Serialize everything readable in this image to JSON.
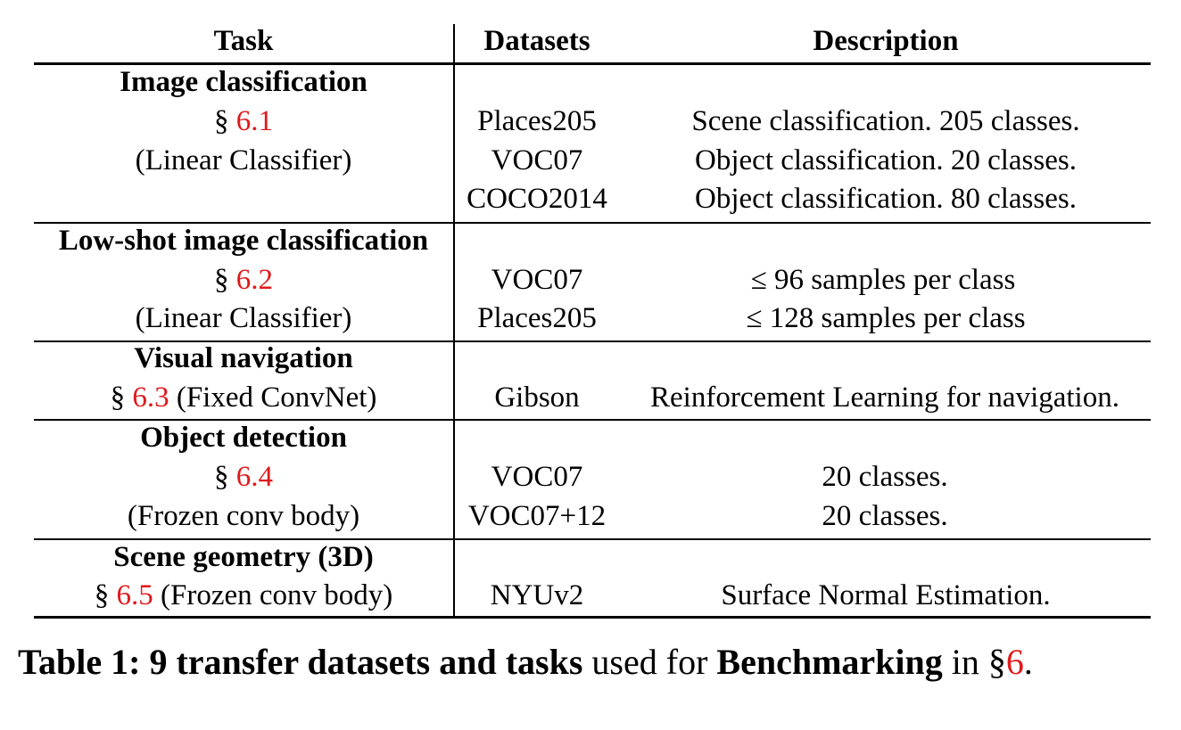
{
  "table": {
    "headers": {
      "task": "Task",
      "datasets": "Datasets",
      "description": "Description"
    },
    "groups": [
      {
        "task_title": "Image classification",
        "section_ref": "6.1",
        "task_note": "(Linear Classifier)",
        "rows": [
          {
            "dataset": "Places205",
            "description": "Scene classification. 205 classes."
          },
          {
            "dataset": "VOC07",
            "description": "Object classification. 20 classes."
          },
          {
            "dataset": "COCO2014",
            "description": "Object classification. 80 classes."
          }
        ]
      },
      {
        "task_title": "Low-shot image classification",
        "section_ref": "6.2",
        "task_note": "(Linear Classifier)",
        "rows": [
          {
            "dataset": "VOC07",
            "description": "≤ 96 samples per class"
          },
          {
            "dataset": "Places205",
            "description": "≤ 128 samples per class"
          }
        ]
      },
      {
        "task_title": "Visual navigation",
        "section_ref": "6.3",
        "task_note": "(Fixed ConvNet)",
        "rows": [
          {
            "dataset": "Gibson",
            "description": "Reinforcement Learning for navigation."
          }
        ]
      },
      {
        "task_title": "Object detection",
        "section_ref": "6.4",
        "task_note": "(Frozen conv body)",
        "rows": [
          {
            "dataset": "VOC07",
            "description": "20 classes."
          },
          {
            "dataset": "VOC07+12",
            "description": "20 classes."
          }
        ]
      },
      {
        "task_title": "Scene geometry (3D)",
        "section_ref": "6.5",
        "task_note": "(Frozen conv body)",
        "rows": [
          {
            "dataset": "NYUv2",
            "description": "Surface Normal Estimation."
          }
        ]
      }
    ],
    "section_symbol": "§"
  },
  "caption": {
    "label": "Table 1:",
    "bold_part": "9 transfer datasets and tasks",
    "middle": "used for",
    "bold_part2": "Benchmarking",
    "tail": "in",
    "section_symbol": "§",
    "section_ref": "6",
    "end": "."
  },
  "colors": {
    "link": "#e0191b",
    "text": "#000000"
  }
}
